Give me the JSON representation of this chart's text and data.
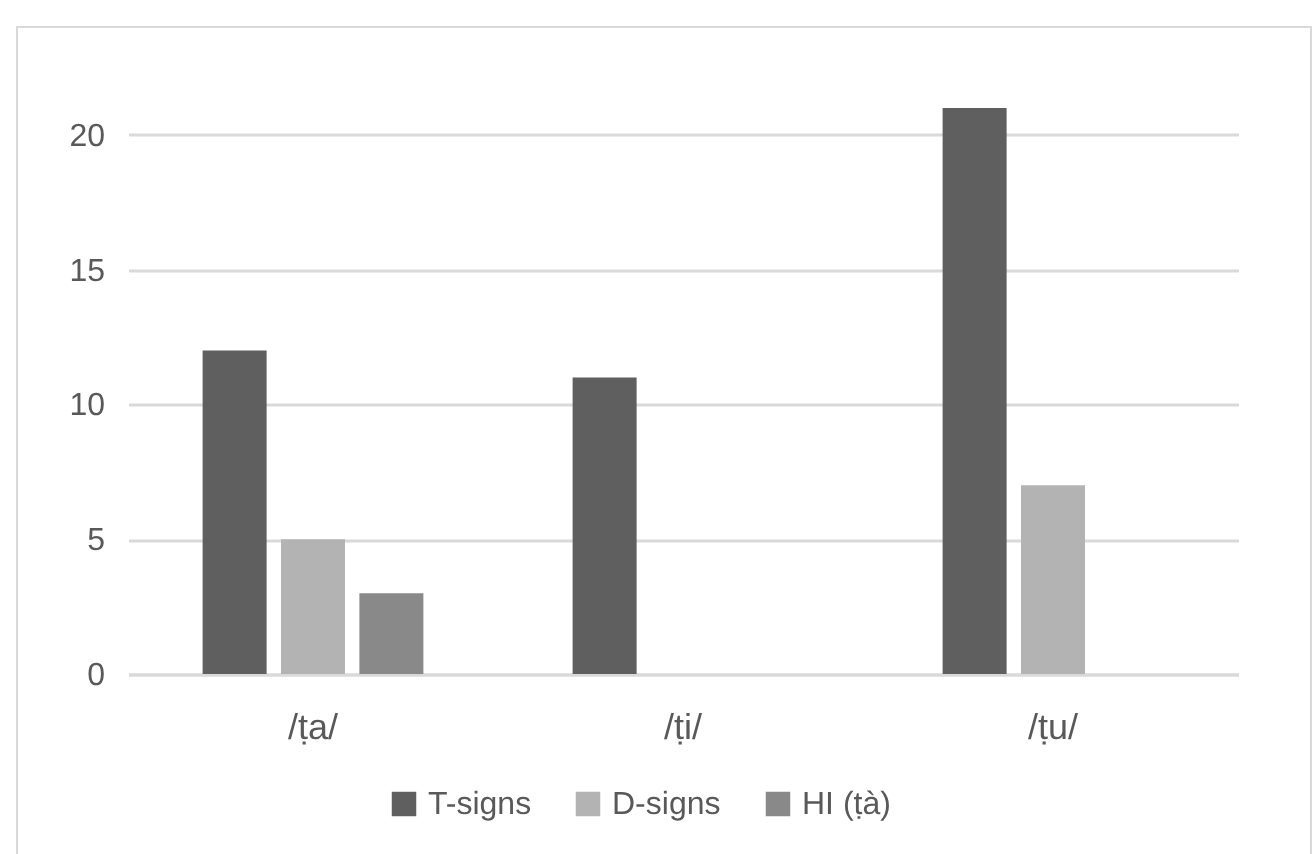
{
  "chart_data": {
    "type": "bar",
    "categories": [
      "/ṭa/",
      "/ṭi/",
      "/ṭu/"
    ],
    "series": [
      {
        "name": "T-signs",
        "color": "#5f5f5f",
        "values": [
          12,
          11,
          21
        ]
      },
      {
        "name": "D-signs",
        "color": "#b3b3b3",
        "values": [
          5,
          null,
          7
        ]
      },
      {
        "name": "HI (ṭà)",
        "color": "#898989",
        "values": [
          3,
          null,
          null
        ]
      }
    ],
    "ylim": [
      0,
      21
    ],
    "yticks": [
      0,
      5,
      10,
      15,
      20
    ],
    "grid": "y",
    "legend": "bottom"
  }
}
